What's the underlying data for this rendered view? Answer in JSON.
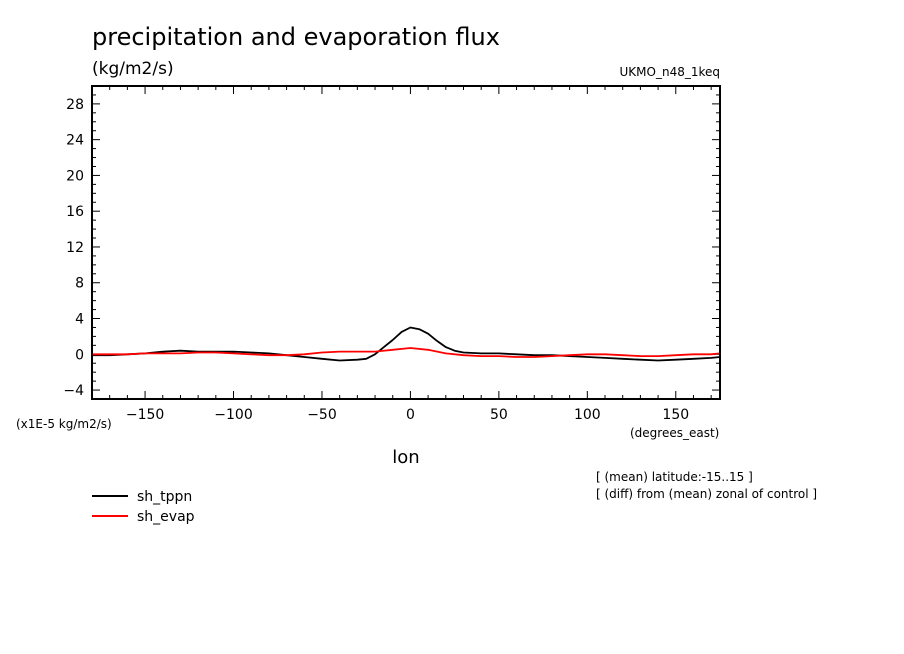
{
  "chart_data": {
    "type": "line",
    "title": "precipitation and evaporation flux",
    "units": "(kg/m2/s)",
    "dataset": "UKMO_n48_1keq",
    "scale_note": "(x1E-5 kg/m2/s)",
    "xlabel": "lon",
    "x_units": "(degrees_east)",
    "notes": [
      "[ (mean) latitude:-15..15 ]",
      "[ (diff) from (mean) zonal of control ]"
    ],
    "xlim": [
      -180,
      175
    ],
    "ylim": [
      -5,
      30
    ],
    "x_ticks": [
      -150,
      -100,
      -50,
      0,
      50,
      100,
      150
    ],
    "x_tick_labels": [
      "-150",
      "-100",
      "-50",
      "0",
      "50",
      "100",
      "150"
    ],
    "y_ticks": [
      -4,
      0,
      4,
      8,
      12,
      16,
      20,
      24,
      28
    ],
    "y_tick_labels": [
      "-4",
      "0",
      "4",
      "8",
      "12",
      "16",
      "20",
      "24",
      "28"
    ],
    "series": [
      {
        "name": "sh_tppn",
        "color": "#000000",
        "x": [
          -180,
          -170,
          -160,
          -150,
          -140,
          -130,
          -120,
          -110,
          -100,
          -90,
          -80,
          -70,
          -60,
          -50,
          -40,
          -30,
          -25,
          -20,
          -15,
          -10,
          -5,
          0,
          5,
          10,
          15,
          20,
          25,
          30,
          40,
          50,
          60,
          70,
          80,
          90,
          100,
          110,
          120,
          130,
          140,
          150,
          160,
          170,
          175
        ],
        "y": [
          -0.1,
          -0.1,
          0.0,
          0.1,
          0.3,
          0.4,
          0.3,
          0.3,
          0.3,
          0.2,
          0.1,
          -0.1,
          -0.3,
          -0.5,
          -0.7,
          -0.6,
          -0.5,
          0.0,
          0.8,
          1.6,
          2.5,
          3.0,
          2.8,
          2.3,
          1.5,
          0.8,
          0.4,
          0.2,
          0.1,
          0.1,
          0.0,
          -0.1,
          -0.1,
          -0.2,
          -0.3,
          -0.4,
          -0.5,
          -0.6,
          -0.7,
          -0.6,
          -0.5,
          -0.4,
          -0.3
        ]
      },
      {
        "name": "sh_evap",
        "color": "#ff0000",
        "x": [
          -180,
          -170,
          -160,
          -150,
          -140,
          -130,
          -120,
          -110,
          -100,
          -90,
          -80,
          -70,
          -60,
          -50,
          -40,
          -30,
          -20,
          -10,
          0,
          10,
          20,
          30,
          40,
          50,
          60,
          70,
          80,
          90,
          100,
          110,
          120,
          130,
          140,
          150,
          160,
          170,
          175
        ],
        "y": [
          0.0,
          0.0,
          0.0,
          0.1,
          0.1,
          0.1,
          0.2,
          0.2,
          0.1,
          0.0,
          -0.1,
          -0.1,
          0.0,
          0.2,
          0.3,
          0.3,
          0.3,
          0.5,
          0.7,
          0.5,
          0.1,
          -0.1,
          -0.2,
          -0.2,
          -0.3,
          -0.3,
          -0.2,
          -0.1,
          0.0,
          0.0,
          -0.1,
          -0.2,
          -0.2,
          -0.1,
          0.0,
          0.0,
          0.1
        ]
      }
    ]
  }
}
